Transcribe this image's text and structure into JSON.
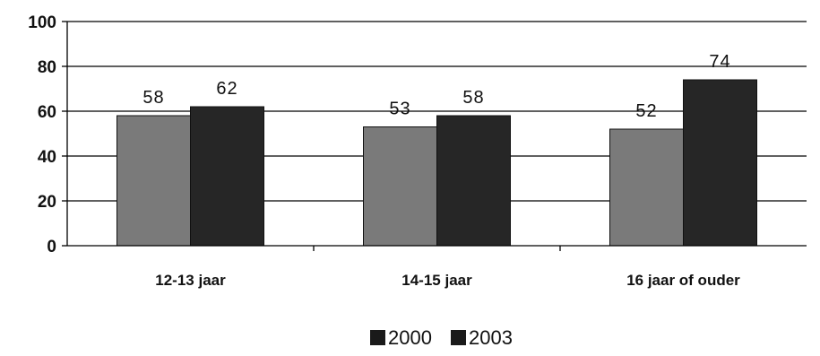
{
  "chart_data": {
    "type": "bar",
    "categories": [
      "12-13 jaar",
      "14-15 jaar",
      "16 jaar of ouder"
    ],
    "series": [
      {
        "name": "2000",
        "values": [
          58,
          53,
          52
        ],
        "color": "#7a7a7a"
      },
      {
        "name": "2003",
        "values": [
          62,
          58,
          74
        ],
        "color": "#262626"
      }
    ],
    "ylim": [
      0,
      100
    ],
    "yticks": [
      0,
      20,
      40,
      60,
      80,
      100
    ],
    "grid": true,
    "legend_position": "bottom",
    "title": "",
    "xlabel": "",
    "ylabel": ""
  }
}
